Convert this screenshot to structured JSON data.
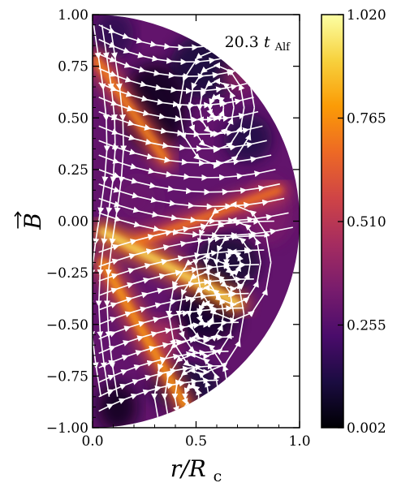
{
  "chart_data": {
    "type": "heatmap",
    "description_kind": "field-magnitude map on a half-disk with magnetic field streamlines",
    "xlabel_main": "r/R",
    "xlabel_sub": "c",
    "ylabel": "B",
    "annotation_value": "20.3",
    "annotation_symbol": "t",
    "annotation_sub": "Alf",
    "xlim": [
      0.0,
      1.0
    ],
    "ylim": [
      -1.0,
      1.0
    ],
    "x_ticks": [
      "0.0",
      "0.5",
      "1.0"
    ],
    "x_tick_values": [
      0.0,
      0.5,
      1.0
    ],
    "y_ticks": [
      "1.00",
      "0.75",
      "0.50",
      "0.25",
      "0.00",
      "−0.25",
      "−0.50",
      "−0.75",
      "−1.00"
    ],
    "y_tick_values": [
      1.0,
      0.75,
      0.5,
      0.25,
      0.0,
      -0.25,
      -0.5,
      -0.75,
      -1.0
    ],
    "colorbar": {
      "colormap": "inferno",
      "min": 0.002,
      "max": 1.02,
      "tick_labels": [
        "1.020",
        "0.765",
        "0.510",
        "0.255",
        "0.002"
      ],
      "tick_values": [
        1.02,
        0.765,
        0.51,
        0.255,
        0.002
      ]
    },
    "bright_bands": [
      {
        "from": [
          0.02,
          0.78
        ],
        "to": [
          0.35,
          0.3
        ],
        "intensity": 0.8
      },
      {
        "from": [
          0.22,
          -0.1
        ],
        "to": [
          0.9,
          0.15
        ],
        "intensity": 0.75
      },
      {
        "from": [
          0.05,
          -0.05
        ],
        "to": [
          0.7,
          -0.4
        ],
        "intensity": 1.0
      },
      {
        "from": [
          0.05,
          -0.2
        ],
        "to": [
          0.45,
          -0.9
        ],
        "intensity": 0.85
      }
    ],
    "streamline_vortices": [
      {
        "center": [
          0.68,
          -0.2
        ]
      },
      {
        "center": [
          0.55,
          -0.45
        ]
      },
      {
        "center": [
          0.6,
          0.55
        ]
      },
      {
        "center": [
          0.48,
          -0.85
        ]
      }
    ],
    "grid": false,
    "legend": "none"
  }
}
